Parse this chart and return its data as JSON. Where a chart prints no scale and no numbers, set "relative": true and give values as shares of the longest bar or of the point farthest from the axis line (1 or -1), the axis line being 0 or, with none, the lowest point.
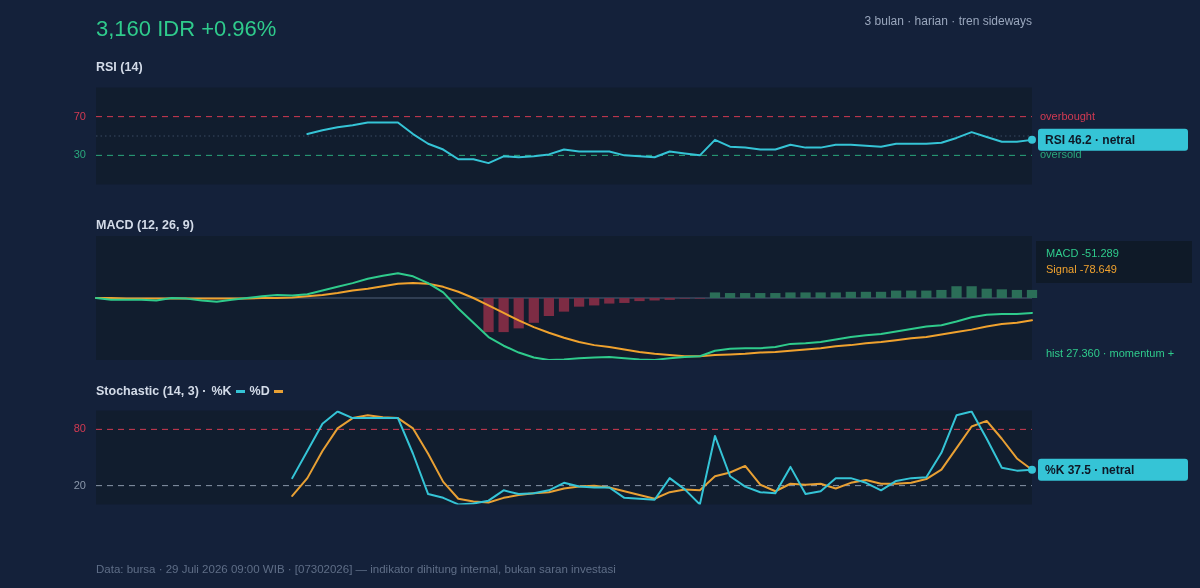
{
  "chart_data": [
    {
      "type": "other",
      "title": "3,160 IDR +0.96%",
      "subtitle": "3 bulan · harian · tren sideways",
      "annotations": [
        "Data: bursa · 29 Juli 2026 09:00 WIB · [07302026] — indikator dihitung internal, bukan saran investasi"
      ]
    },
    {
      "type": "line",
      "title": "RSI (14)",
      "categories": [
        null,
        null,
        null,
        null,
        null,
        null,
        null,
        null,
        null,
        null,
        null,
        null,
        null,
        null,
        null,
        null,
        null,
        null,
        null,
        null,
        null,
        null,
        null,
        null,
        null,
        null,
        null,
        null,
        null,
        null,
        null,
        null,
        null,
        null,
        null,
        null,
        null,
        null,
        null,
        null,
        null,
        null,
        null,
        null,
        null,
        null,
        null,
        null,
        null,
        null,
        null,
        null,
        null,
        null,
        null,
        null,
        null,
        null,
        null,
        null,
        null,
        null,
        null
      ],
      "series": [
        {
          "color": "#35c4d6",
          "values": [
            null,
            null,
            null,
            null,
            null,
            null,
            null,
            null,
            null,
            null,
            null,
            null,
            null,
            null,
            52,
            56,
            59,
            61,
            64,
            64,
            64,
            52,
            42,
            36,
            26,
            26,
            22,
            29,
            28,
            29,
            31,
            36,
            34,
            34,
            34,
            30,
            29,
            28,
            34,
            32,
            30,
            46,
            39,
            38,
            36,
            36,
            41,
            38,
            38,
            41,
            41,
            40,
            39,
            42,
            42,
            42,
            43,
            48,
            54,
            49,
            44,
            44,
            46
          ]
        }
      ],
      "ylim": [
        0,
        100
      ],
      "yticks": [
        30,
        70
      ],
      "tick_labels": "y",
      "line_style": "solid",
      "ref_lines": [
        {
          "axis": "y",
          "value": 70,
          "label": "overbought",
          "color": "#d23a52",
          "line_style": "dashed"
        },
        {
          "axis": "y",
          "value": 50,
          "label": null,
          "color": "#3b4a60",
          "line_style": "dotted"
        },
        {
          "axis": "y",
          "value": 30,
          "label": "oversold",
          "color": "#2aa77c",
          "line_style": "dashed"
        }
      ],
      "annotations": [
        "RSI 46.2 · netral"
      ]
    },
    {
      "type": "line",
      "title": "MACD (12, 26, 9)",
      "relative": true,
      "categories": [
        null,
        null,
        null,
        null,
        null,
        null,
        null,
        null,
        null,
        null,
        null,
        null,
        null,
        null,
        null,
        null,
        null,
        null,
        null,
        null,
        null,
        null,
        null,
        null,
        null,
        null,
        null,
        null,
        null,
        null,
        null,
        null,
        null,
        null,
        null,
        null,
        null,
        null,
        null,
        null,
        null,
        null,
        null,
        null,
        null,
        null,
        null,
        null,
        null,
        null,
        null,
        null,
        null,
        null,
        null,
        null,
        null,
        null,
        null,
        null,
        null,
        null,
        null
      ],
      "series": [
        {
          "type": "bar",
          "values": [
            null,
            null,
            null,
            null,
            null,
            null,
            null,
            null,
            null,
            null,
            null,
            null,
            null,
            null,
            null,
            null,
            null,
            null,
            null,
            null,
            null,
            null,
            null,
            null,
            null,
            null,
            -0.55,
            -0.55,
            -0.49,
            -0.4,
            -0.29,
            -0.22,
            -0.14,
            -0.12,
            -0.09,
            -0.08,
            -0.05,
            -0.04,
            -0.03,
            -0.01,
            -0.01,
            0.09,
            0.08,
            0.08,
            0.08,
            0.08,
            0.09,
            0.09,
            0.09,
            0.09,
            0.1,
            0.1,
            0.1,
            0.12,
            0.12,
            0.12,
            0.13,
            0.19,
            0.19,
            0.15,
            0.14,
            0.13,
            0.13
          ],
          "colors": [
            null,
            null,
            null,
            null,
            null,
            null,
            null,
            null,
            null,
            null,
            null,
            null,
            null,
            null,
            null,
            null,
            null,
            null,
            null,
            null,
            null,
            null,
            null,
            null,
            null,
            null,
            "#7d2c44",
            "#7d2c44",
            "#7d2c44",
            "#7d2c44",
            "#7d2c44",
            "#7d2c44",
            "#7d2c44",
            "#7d2c44",
            "#7d2c44",
            "#7d2c44",
            "#7d2c44",
            "#7d2c44",
            "#7d2c44",
            "#7d2c44",
            "#7d2c44",
            "#2b6e58",
            "#2b6e58",
            "#2b6e58",
            "#2b6e58",
            "#2b6e58",
            "#2b6e58",
            "#2b6e58",
            "#2b6e58",
            "#2b6e58",
            "#2b6e58",
            "#2b6e58",
            "#2b6e58",
            "#2b6e58",
            "#2b6e58",
            "#2b6e58",
            "#2b6e58",
            "#2b6e58",
            "#2b6e58",
            "#2b6e58",
            "#2b6e58",
            "#2b6e58",
            "#2b6e58"
          ]
        },
        {
          "type": "line",
          "color": "#2fcb8c",
          "values": [
            0,
            -0.03,
            -0.03,
            -0.03,
            -0.04,
            0,
            -0.01,
            -0.04,
            -0.06,
            -0.03,
            0,
            0.03,
            0.05,
            0.04,
            0.06,
            0.12,
            0.18,
            0.24,
            0.31,
            0.36,
            0.4,
            0.35,
            0.24,
            0.09,
            -0.17,
            -0.4,
            -0.63,
            -0.77,
            -0.88,
            -0.96,
            -1,
            -0.99,
            -0.97,
            -0.96,
            -0.95,
            -0.97,
            -0.99,
            -1,
            -0.97,
            -0.95,
            -0.94,
            -0.85,
            -0.82,
            -0.81,
            -0.81,
            -0.79,
            -0.74,
            -0.73,
            -0.71,
            -0.67,
            -0.63,
            -0.6,
            -0.58,
            -0.54,
            -0.5,
            -0.46,
            -0.44,
            -0.38,
            -0.31,
            -0.27,
            -0.26,
            -0.26,
            -0.24
          ]
        },
        {
          "type": "line",
          "color": "#f0a22e",
          "values": [
            0,
            0,
            -0.01,
            -0.01,
            -0.01,
            -0.01,
            -0.01,
            -0.01,
            -0.01,
            -0.01,
            -0.01,
            0,
            0,
            0.01,
            0.03,
            0.05,
            0.08,
            0.12,
            0.15,
            0.19,
            0.23,
            0.24,
            0.23,
            0.18,
            0.1,
            0,
            -0.12,
            -0.24,
            -0.36,
            -0.47,
            -0.56,
            -0.64,
            -0.71,
            -0.76,
            -0.79,
            -0.83,
            -0.87,
            -0.9,
            -0.92,
            -0.94,
            -0.94,
            -0.92,
            -0.91,
            -0.9,
            -0.88,
            -0.87,
            -0.85,
            -0.83,
            -0.81,
            -0.78,
            -0.76,
            -0.73,
            -0.71,
            -0.68,
            -0.65,
            -0.63,
            -0.59,
            -0.55,
            -0.51,
            -0.46,
            -0.42,
            -0.4,
            -0.36
          ]
        }
      ],
      "tick_labels": false,
      "line_style": "solid",
      "annotations": [
        "MACD -51.289",
        "Signal -78.649",
        "hist 27.360 · momentum +"
      ]
    },
    {
      "type": "line",
      "title": "Stochastic (14, 3) ·",
      "categories": [
        null,
        null,
        null,
        null,
        null,
        null,
        null,
        null,
        null,
        null,
        null,
        null,
        null,
        null,
        null,
        null,
        null,
        null,
        null,
        null,
        null,
        null,
        null,
        null,
        null,
        null,
        null,
        null,
        null,
        null,
        null,
        null,
        null,
        null,
        null,
        null,
        null,
        null,
        null,
        null,
        null,
        null,
        null,
        null,
        null,
        null,
        null,
        null,
        null,
        null,
        null,
        null,
        null,
        null,
        null,
        null,
        null,
        null,
        null,
        null,
        null,
        null,
        null
      ],
      "series": [
        {
          "name": "%K",
          "color": "#35c4d6",
          "values": [
            null,
            null,
            null,
            null,
            null,
            null,
            null,
            null,
            null,
            null,
            null,
            null,
            null,
            28,
            57,
            86,
            99,
            92,
            92,
            92,
            92,
            54,
            11,
            7,
            0,
            1,
            4,
            15,
            11,
            12,
            15,
            23,
            19,
            18,
            18,
            7,
            6,
            5,
            28,
            16,
            0,
            73,
            30,
            19,
            13,
            12,
            40,
            11,
            14,
            28,
            28,
            23,
            15,
            25,
            28,
            29,
            55,
            95,
            99,
            70,
            39,
            36,
            37
          ]
        },
        {
          "name": "%D",
          "color": "#e8a034",
          "values": [
            null,
            null,
            null,
            null,
            null,
            null,
            null,
            null,
            null,
            null,
            null,
            null,
            null,
            9,
            28,
            57,
            81,
            92,
            95,
            93,
            92,
            81,
            54,
            24,
            6,
            3,
            2,
            7,
            10,
            12,
            13,
            17,
            19,
            20,
            18,
            14,
            10,
            6,
            13,
            16,
            15,
            30,
            34,
            41,
            21,
            14,
            22,
            21,
            22,
            17,
            23,
            26,
            22,
            22,
            23,
            27,
            37,
            60,
            83,
            89,
            70,
            49,
            37
          ]
        }
      ],
      "ylim": [
        0,
        100
      ],
      "yticks": [
        20,
        80
      ],
      "tick_labels": "y",
      "legend": "top left",
      "line_style": "solid",
      "ref_lines": [
        {
          "axis": "y",
          "value": 80,
          "label": null,
          "color": "#d23a52",
          "line_style": "dashed"
        },
        {
          "axis": "y",
          "value": 20,
          "label": null,
          "color": "#8a97aa",
          "line_style": "dashed"
        }
      ],
      "annotations": [
        "%K 37.5 · netral"
      ]
    }
  ]
}
